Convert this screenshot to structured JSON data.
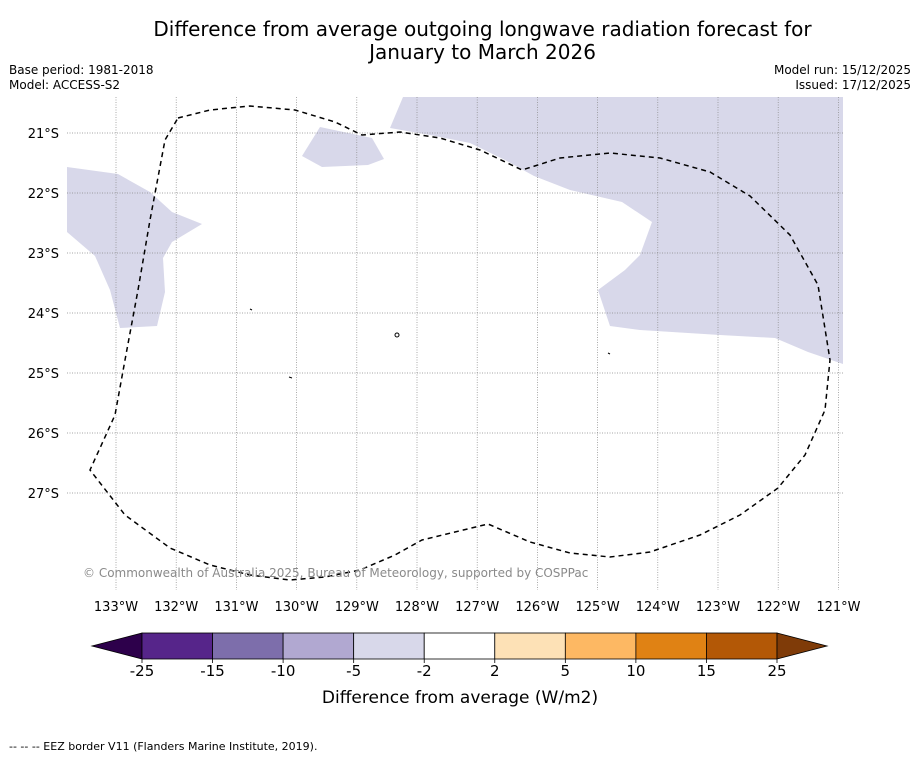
{
  "header": {
    "title_line1": "Difference from average outgoing longwave radiation forecast for",
    "title_line2": "January to March 2026",
    "base_period": "Base period: 1981-2018",
    "model": "Model: ACCESS-S2",
    "model_run": "Model run: 15/12/2025",
    "issued": "Issued: 17/12/2025"
  },
  "map": {
    "lat_labels": [
      "21°S",
      "22°S",
      "23°S",
      "24°S",
      "25°S",
      "26°S",
      "27°S"
    ],
    "lon_labels": [
      "133°W",
      "132°W",
      "131°W",
      "130°W",
      "129°W",
      "128°W",
      "127°W",
      "126°W",
      "125°W",
      "124°W",
      "123°W",
      "122°W",
      "121°W"
    ],
    "copyright": "© Commonwealth of Australia 2025, Bureau of Meteorology, supported by COSPPac",
    "shading_color": "#d8d8ea"
  },
  "legend": {
    "ticks": [
      "-25",
      "-15",
      "-10",
      "-5",
      "-2",
      "2",
      "5",
      "10",
      "15",
      "25"
    ],
    "colors": [
      "#56258a",
      "#7d6eab",
      "#b1a8d1",
      "#d8d8ea",
      "#ffffff",
      "#fde1b6",
      "#fdb863",
      "#e08214",
      "#b35806"
    ],
    "low_extend_color": "#2d004b",
    "high_extend_color": "#7f3b08",
    "label": "Difference from average (W/m2)"
  },
  "footnote": "--  --  -- EEZ border V11 (Flanders Marine Institute, 2019)."
}
